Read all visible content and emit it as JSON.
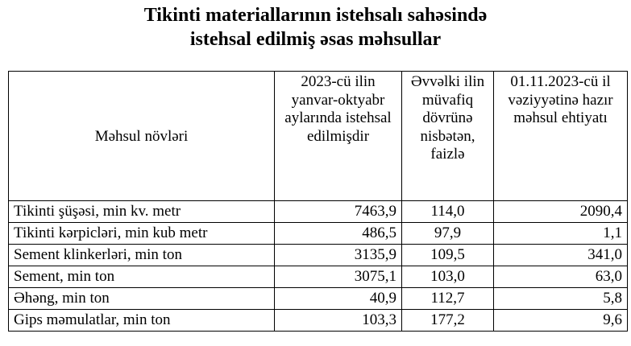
{
  "title": {
    "line1": "Tikinti materiallarının istehsalı sahəsində",
    "line2": "istehsal edilmiş əsas məhsullar"
  },
  "table": {
    "headers": [
      "Məhsul növləri",
      "2023-cü ilin yanvar-oktyabr aylarında istehsal edilmişdir",
      "Əvvəlki ilin müvafiq dövrünə nisbətən, faizlə",
      "01.11.2023-cü il vəziyyətinə hazır məhsul ehtiyatı"
    ],
    "rows": [
      [
        "Tikinti şüşəsi, min kv. metr",
        "7463,9",
        "114,0",
        "2090,4"
      ],
      [
        "Tikinti kərpicləri, min kub metr",
        "486,5",
        "97,9",
        "1,1"
      ],
      [
        "Sement klinkerləri, min ton",
        "3135,9",
        "109,5",
        "341,0"
      ],
      [
        "Sement, min ton",
        "3075,1",
        "103,0",
        "63,0"
      ],
      [
        "Əhəng, min ton",
        "40,9",
        "112,7",
        "5,8"
      ],
      [
        "Gips məmulatlar, min ton",
        "103,3",
        "177,2",
        "9,6"
      ]
    ]
  }
}
